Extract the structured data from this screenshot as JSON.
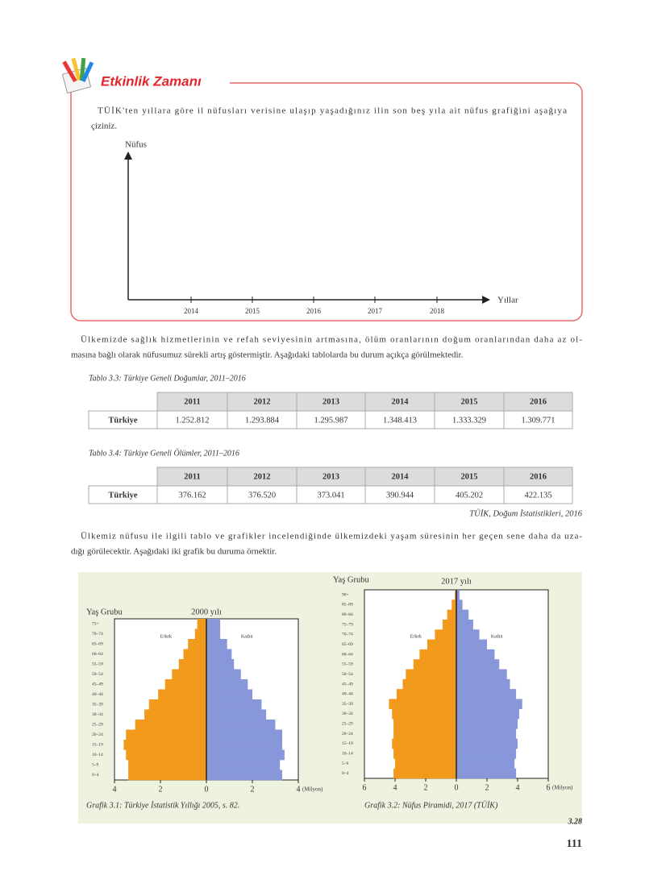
{
  "activity": {
    "title": "Etkinlik Zamanı",
    "instruction": [
      "TÜİK'ten yıllara göre il nüfusları verisine ulaşıp yaşadığınız ilin son beş yıla ait nüfus grafiğini aşağıya",
      "çiziniz."
    ],
    "y_label": "Nüfus",
    "x_label": "Yıllar",
    "years": [
      "2014",
      "2015",
      "2016",
      "2017",
      "2018"
    ]
  },
  "paragraphs": [
    [
      "Ülkemizde sağlık hizmetlerinin ve refah seviyesinin artmasına, ölüm oranlarının doğum oranlarından daha az ol-",
      "masına bağlı olarak nüfusumuz sürekli artış göstermiştir. Aşağıdaki tablolarda bu durum açıkça görülmektedir."
    ],
    [
      "Ülkemiz nüfusu ile ilgili tablo ve grafikler incelendiğinde ülkemizdeki yaşam süresinin her geçen sene daha da uza-",
      "dığı görülecektir. Aşağıdaki iki grafik bu duruma örnektir."
    ]
  ],
  "tables": [
    {
      "caption": "Tablo 3.3: Türkiye Geneli Doğumlar, 2011–2016",
      "columns": [
        "2011",
        "2012",
        "2013",
        "2014",
        "2015",
        "2016"
      ],
      "rows": [
        [
          "Türkiye",
          "1.252.812",
          "1.293.884",
          "1.295.987",
          "1.348.413",
          "1.333.329",
          "1.309.771"
        ]
      ]
    },
    {
      "caption": "Tablo 3.4: Türkiye Geneli Ölümler, 2011–2016",
      "columns": [
        "2011",
        "2012",
        "2013",
        "2014",
        "2015",
        "2016"
      ],
      "rows": [
        [
          "Türkiye",
          "376.162",
          "376.520",
          "373.041",
          "390.944",
          "405.202",
          "422.135"
        ]
      ]
    }
  ],
  "source": "TÜİK, Doğum İstatistikleri, 2016",
  "pyramids": [
    {
      "type": "pyramid",
      "title": "2000 yılı",
      "y_label": "Yaş Grubu",
      "unit": "(Milyon)",
      "caption": "Grafik 3.1: Türkiye İstatistik Yıllığı 2005, s. 82.",
      "categories": [
        "0–4",
        "5–9",
        "10–14",
        "15–19",
        "20–24",
        "25–29",
        "30–34",
        "35–39",
        "40–44",
        "45–49",
        "50–54",
        "55–59",
        "60–64",
        "65–69",
        "70–74",
        "75+"
      ],
      "series": [
        {
          "name": "Erkek",
          "color": "#f29a1c",
          "values": [
            3.4,
            3.4,
            3.5,
            3.6,
            3.5,
            3.1,
            2.7,
            2.5,
            2.1,
            1.8,
            1.5,
            1.2,
            1.0,
            0.8,
            0.5,
            0.4
          ]
        },
        {
          "name": "Kadın",
          "color": "#8797d9",
          "values": [
            3.3,
            3.2,
            3.4,
            3.3,
            3.3,
            3.0,
            2.6,
            2.4,
            2.0,
            1.8,
            1.5,
            1.2,
            1.1,
            0.9,
            0.6,
            0.6
          ]
        }
      ],
      "xlim": [
        -4,
        4
      ],
      "xticks": [
        {
          "value": -4,
          "label": "4"
        },
        {
          "value": -2,
          "label": "2"
        },
        0,
        2,
        4
      ]
    },
    {
      "type": "pyramid",
      "title": "2017 yılı",
      "y_label": "Yaş Grubu",
      "unit": "(Milyon)",
      "caption": "Grafik 3.2: Nüfus Piramidi, 2017 (TÜİK)",
      "categories": [
        "0–4",
        "5–9",
        "10–14",
        "15–19",
        "20–24",
        "25–29",
        "30–34",
        "35–39",
        "40–44",
        "45–49",
        "50–54",
        "55–59",
        "60–64",
        "65–69",
        "70–74",
        "75–79",
        "80–84",
        "85–89",
        "90+"
      ],
      "series": [
        {
          "name": "Erkek",
          "color": "#f29a1c",
          "values": [
            4.1,
            4.0,
            4.1,
            4.2,
            4.1,
            4.1,
            4.2,
            4.4,
            3.9,
            3.5,
            3.3,
            2.8,
            2.4,
            1.9,
            1.4,
            0.9,
            0.6,
            0.3,
            0.1
          ]
        },
        {
          "name": "Kadın",
          "color": "#8797d9",
          "values": [
            3.9,
            3.8,
            3.9,
            4.0,
            3.9,
            4.0,
            4.1,
            4.3,
            3.9,
            3.5,
            3.3,
            2.8,
            2.5,
            2.0,
            1.5,
            1.1,
            0.8,
            0.4,
            0.2
          ]
        }
      ],
      "xlim": [
        -6,
        6
      ],
      "xticks": [
        {
          "value": -6,
          "label": "6"
        },
        {
          "value": -4,
          "label": "4"
        },
        {
          "value": -2,
          "label": "2"
        },
        0,
        2,
        4,
        6
      ]
    }
  ],
  "footer": {
    "code": "3.28",
    "page": "111"
  }
}
